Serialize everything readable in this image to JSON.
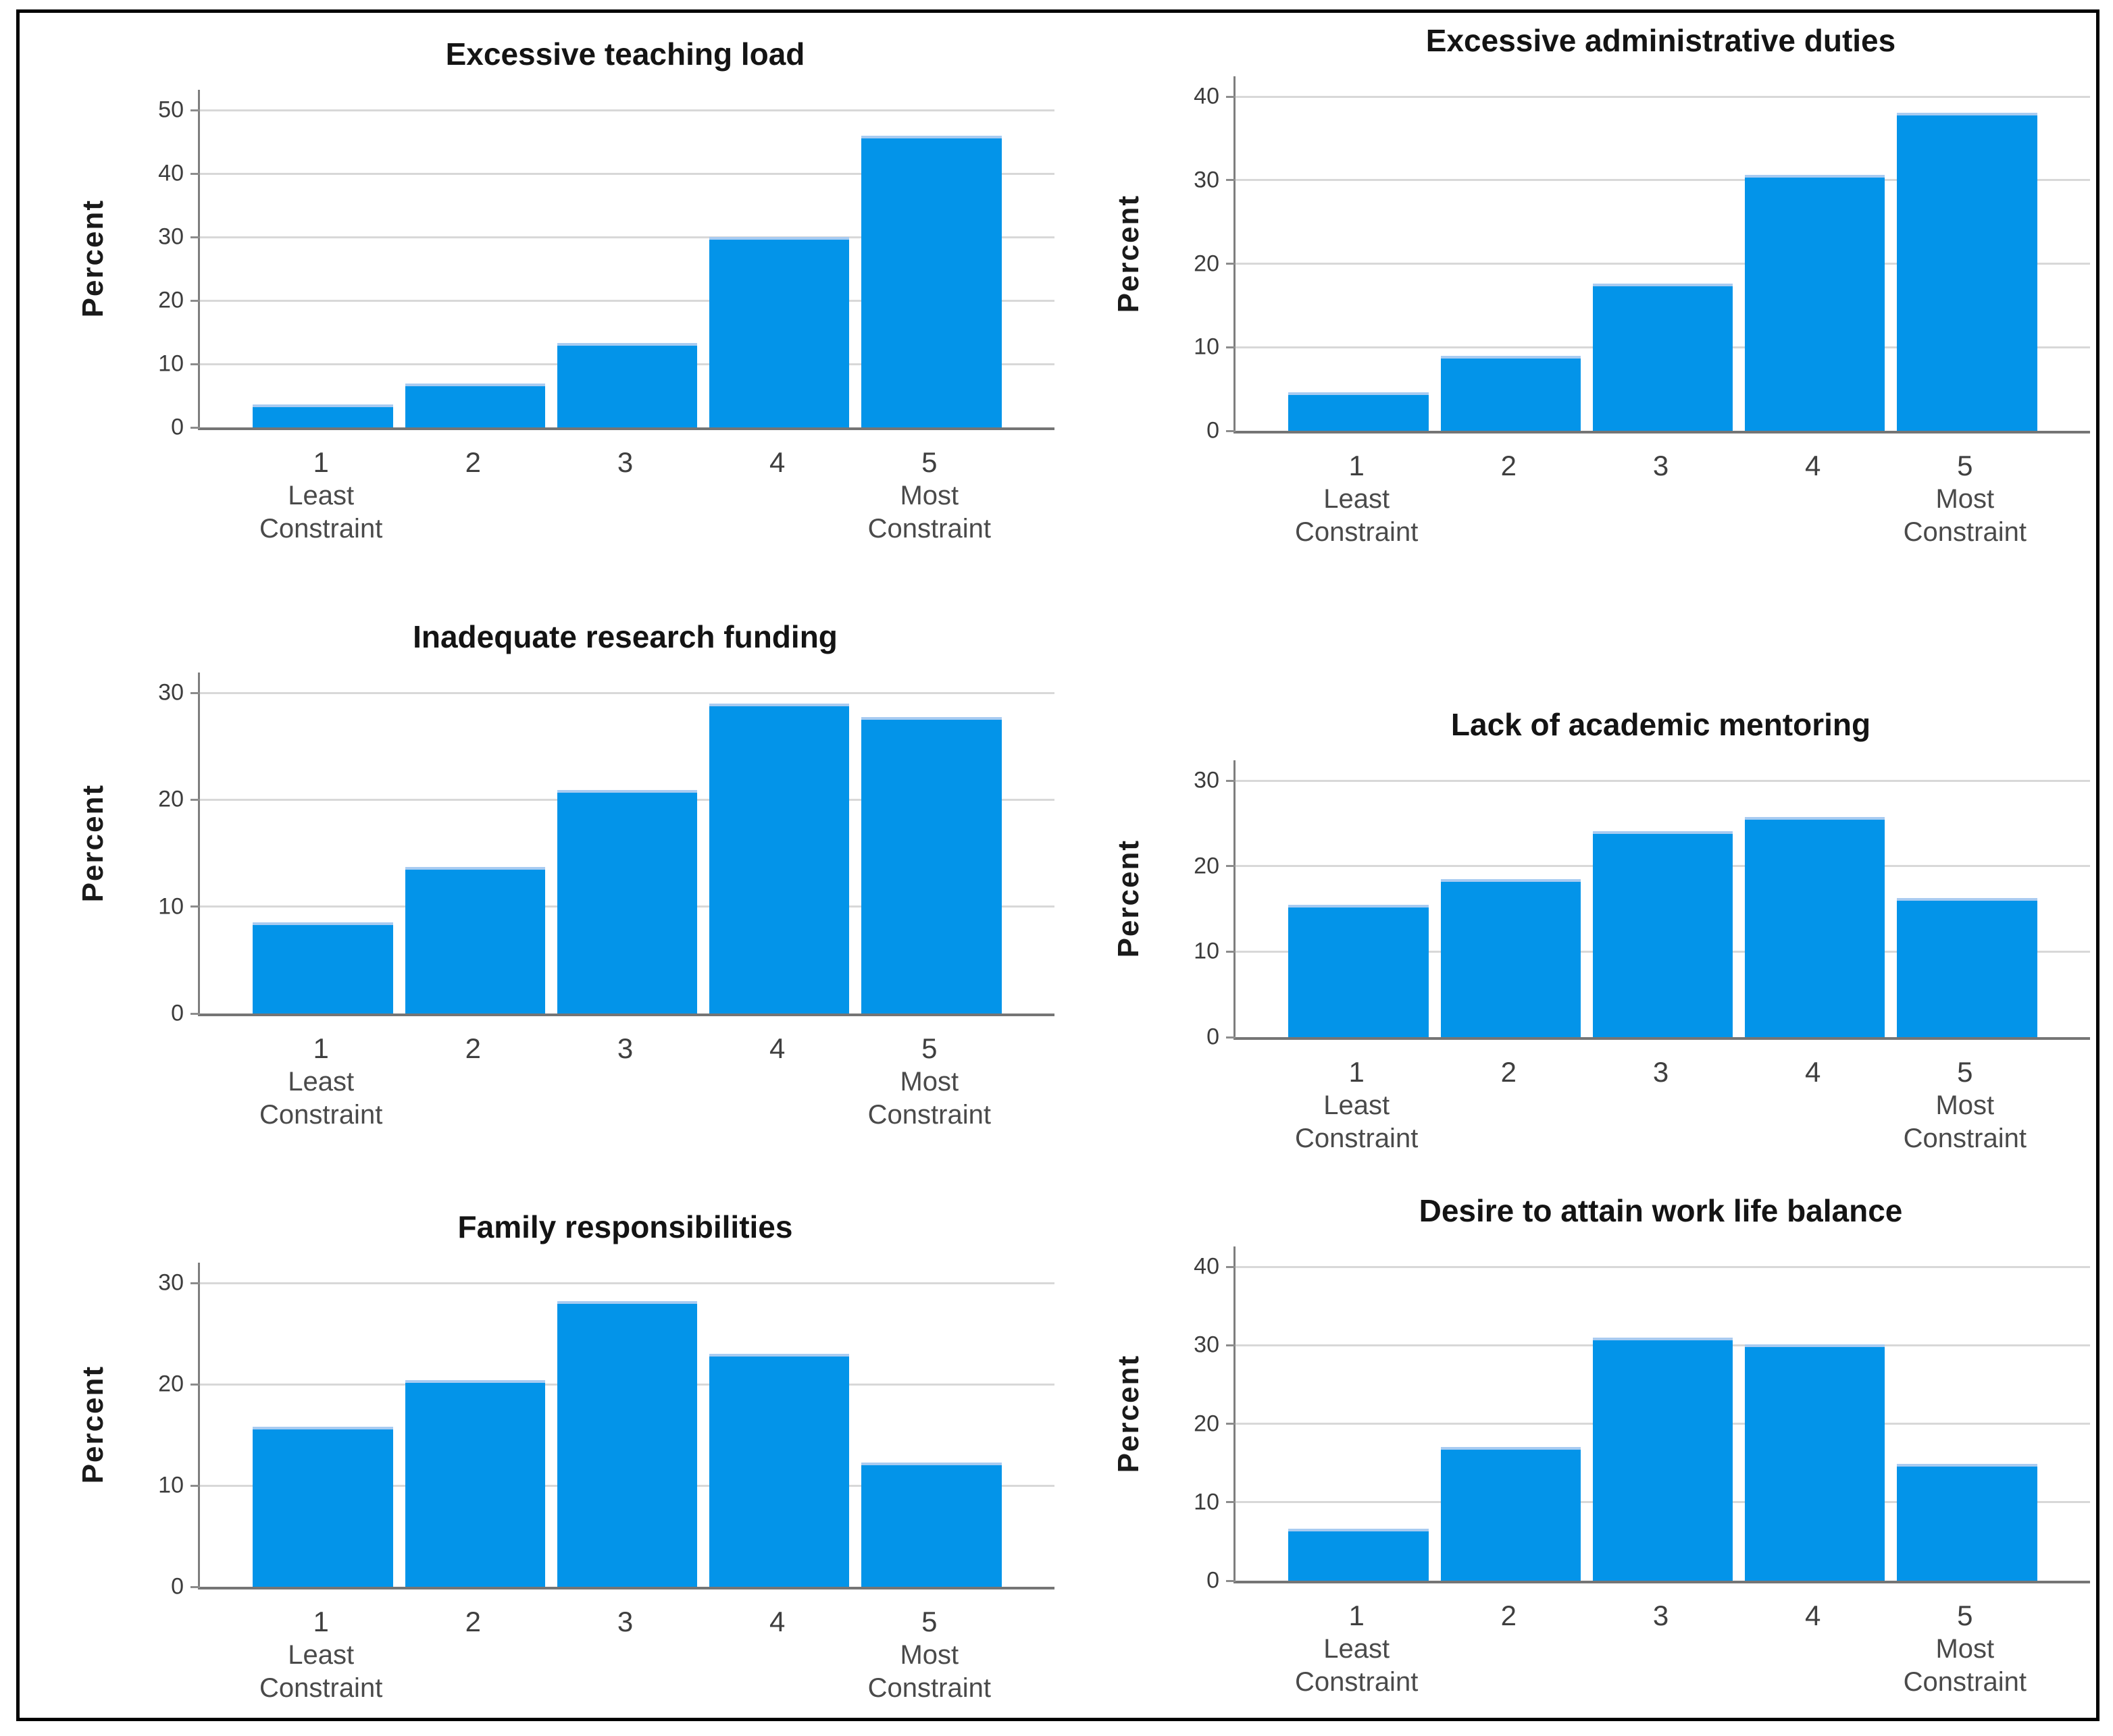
{
  "palette": {
    "bar_fill": "#0394E9",
    "bar_highlight": "#A8CBF1",
    "gridline": "#D8D8D8",
    "y_axis_line": "#7E7E7E",
    "x_axis_line": "#757575",
    "title_color": "#141414",
    "tick_label_color": "#3C3C3C",
    "frame_border": "#000000",
    "background": "#FFFFFF"
  },
  "chart_data": [
    {
      "type": "bar",
      "title": "Excessive teaching load",
      "ylabel": "Percent",
      "xlabel": "",
      "ylim": [
        0,
        50
      ],
      "yticks": [
        0,
        10,
        20,
        30,
        40,
        50
      ],
      "gridlines": true,
      "legend": "none",
      "categories": [
        "1",
        "2",
        "3",
        "4",
        "5"
      ],
      "category_sublabels": [
        [
          "Least",
          "Constraint"
        ],
        [],
        [],
        [],
        [
          "Most",
          "Constraint"
        ]
      ],
      "values": [
        3.6,
        6.9,
        13.3,
        30.0,
        46.0
      ]
    },
    {
      "type": "bar",
      "title": "Excessive administrative duties",
      "ylabel": "Percent",
      "xlabel": "",
      "ylim": [
        0,
        40
      ],
      "yticks": [
        0,
        10,
        20,
        30,
        40
      ],
      "gridlines": true,
      "legend": "none",
      "categories": [
        "1",
        "2",
        "3",
        "4",
        "5"
      ],
      "category_sublabels": [
        [
          "Least",
          "Constraint"
        ],
        [],
        [],
        [],
        [
          "Most",
          "Constraint"
        ]
      ],
      "values": [
        4.6,
        9.0,
        17.6,
        30.6,
        38.1
      ]
    },
    {
      "type": "bar",
      "title": "Inadequate research funding",
      "ylabel": "Percent",
      "xlabel": "",
      "ylim": [
        0,
        30
      ],
      "yticks": [
        0,
        10,
        20,
        30
      ],
      "gridlines": true,
      "legend": "none",
      "categories": [
        "1",
        "2",
        "3",
        "4",
        "5"
      ],
      "category_sublabels": [
        [
          "Least",
          "Constraint"
        ],
        [],
        [],
        [],
        [
          "Most",
          "Constraint"
        ]
      ],
      "values": [
        8.5,
        13.7,
        20.9,
        29.0,
        27.7
      ]
    },
    {
      "type": "bar",
      "title": "Lack of academic mentoring",
      "ylabel": "Percent",
      "xlabel": "",
      "ylim": [
        0,
        30
      ],
      "yticks": [
        0,
        10,
        20,
        30
      ],
      "gridlines": true,
      "legend": "none",
      "categories": [
        "1",
        "2",
        "3",
        "4",
        "5"
      ],
      "category_sublabels": [
        [
          "Least",
          "Constraint"
        ],
        [],
        [],
        [],
        [
          "Most",
          "Constraint"
        ]
      ],
      "values": [
        15.5,
        18.5,
        24.1,
        25.7,
        16.3
      ]
    },
    {
      "type": "bar",
      "title": "Family responsibilities",
      "ylabel": "Percent",
      "xlabel": "",
      "ylim": [
        0,
        30
      ],
      "yticks": [
        0,
        10,
        20,
        30
      ],
      "gridlines": true,
      "legend": "none",
      "categories": [
        "1",
        "2",
        "3",
        "4",
        "5"
      ],
      "category_sublabels": [
        [
          "Least",
          "Constraint"
        ],
        [],
        [],
        [],
        [
          "Most",
          "Constraint"
        ]
      ],
      "values": [
        15.8,
        20.4,
        28.2,
        23.0,
        12.3
      ]
    },
    {
      "type": "bar",
      "title": "Desire to attain work life balance",
      "ylabel": "Percent",
      "xlabel": "",
      "ylim": [
        0,
        40
      ],
      "yticks": [
        0,
        10,
        20,
        30,
        40
      ],
      "gridlines": true,
      "legend": "none",
      "categories": [
        "1",
        "2",
        "3",
        "4",
        "5"
      ],
      "category_sublabels": [
        [
          "Least",
          "Constraint"
        ],
        [],
        [],
        [],
        [
          "Most",
          "Constraint"
        ]
      ],
      "values": [
        6.6,
        17.0,
        31.0,
        30.1,
        14.9
      ]
    }
  ]
}
